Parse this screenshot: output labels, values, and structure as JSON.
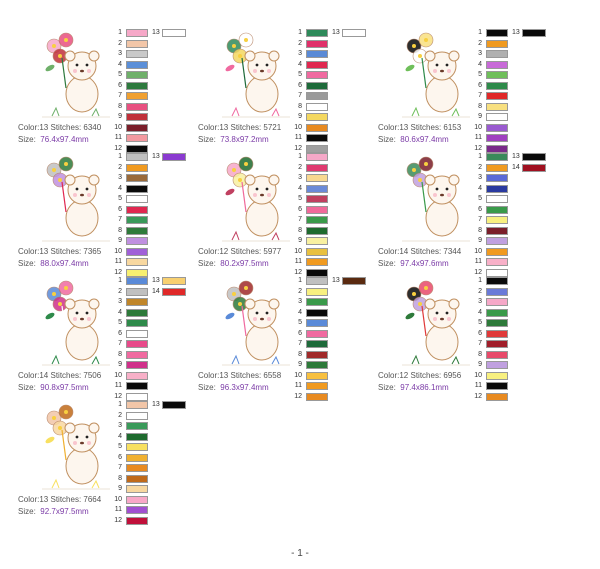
{
  "designs": [
    {
      "art": "monkey-with-flowers",
      "color_label": "Color:",
      "color_count": "13",
      "stitches_label": "Stitches:",
      "stitches": "6340",
      "size_label": "Size:",
      "size": "76.4x97.4mm",
      "swatches": [
        "#f6a8c8",
        "#f2c6a8",
        "#c9c9c9",
        "#5b8fd8",
        "#6fb06a",
        "#2e7a3e",
        "#f0a030",
        "#e85080",
        "#c0303a",
        "#7a1e2a",
        "#f39aa0",
        "#0a0a0a"
      ],
      "extra": [
        {
          "num": "13",
          "color": "#ffffff"
        }
      ]
    },
    {
      "art": "panda-with-tulips",
      "color_label": "Color:",
      "color_count": "13",
      "stitches_label": "Stitches:",
      "stitches": "5721",
      "size_label": "Size:",
      "size": "73.8x97.2mm",
      "swatches": [
        "#2e8a5a",
        "#e0306a",
        "#5a8ad6",
        "#e02850",
        "#f06aa0",
        "#1e6a3a",
        "#9a9a9a",
        "#ffffff",
        "#f4d860",
        "#e88a20",
        "#0a0a0a",
        "#a0a0a0"
      ],
      "extra": [
        {
          "num": "13",
          "color": "#ffffff"
        }
      ]
    },
    {
      "art": "bunny-with-iris",
      "color_label": "Color:",
      "color_count": "13",
      "stitches_label": "Stitches:",
      "stitches": "6153",
      "size_label": "Size:",
      "size": "80.6x97.4mm",
      "swatches": [
        "#0a0a0a",
        "#f09a20",
        "#b0b0b0",
        "#c86ad8",
        "#6fbf5a",
        "#2e8a4a",
        "#e02828",
        "#f8e080",
        "#ffffff",
        "#9a5ad0",
        "#a040c0",
        "#7a2a8a"
      ],
      "extra": [
        {
          "num": "13",
          "color": "#0a0a0a"
        }
      ]
    },
    {
      "art": "puppy-with-bellflower",
      "color_label": "Color:",
      "color_count": "13",
      "stitches_label": "Stitches:",
      "stitches": "7365",
      "size_label": "Size:",
      "size": "88.0x97.4mm",
      "swatches": [
        "#c0c0c0",
        "#f09a20",
        "#9a6a3a",
        "#0a0a0a",
        "#ffffff",
        "#e02850",
        "#3a9a5a",
        "#2e7a3a",
        "#c090e0",
        "#a060d8",
        "#f8d8a0",
        "#f8f070"
      ],
      "extra": [
        {
          "num": "13",
          "color": "#8a3ad0"
        }
      ]
    },
    {
      "art": "mouse-with-lilies",
      "color_label": "Color:",
      "color_count": "12",
      "stitches_label": "Stitches:",
      "stitches": "5977",
      "size_label": "Size:",
      "size": "80.2x97.5mm",
      "swatches": [
        "#f6a8c8",
        "#e03a70",
        "#f8d890",
        "#6a8ad8",
        "#c04060",
        "#f06a9a",
        "#3a9a4a",
        "#1e6a2e",
        "#f8f0a0",
        "#e8c040",
        "#f09a20",
        "#0a0a0a"
      ],
      "extra": []
    },
    {
      "art": "kitten-with-pansies",
      "color_label": "Color:",
      "color_count": "14",
      "stitches_label": "Stitches:",
      "stitches": "7344",
      "size_label": "Size:",
      "size": "97.4x97.6mm",
      "swatches": [
        "#3a8a5a",
        "#f09a20",
        "#5a6ad8",
        "#2a3aa0",
        "#ffffff",
        "#3a9a4a",
        "#f8f080",
        "#7a1e2a",
        "#c0a0e0",
        "#f09a20",
        "#f8b0c8",
        "#ffffff"
      ],
      "extra": [
        {
          "num": "13",
          "color": "#0a0a0a"
        },
        {
          "num": "14",
          "color": "#a01020"
        }
      ]
    },
    {
      "art": "bear-with-roses",
      "color_label": "Color:",
      "color_count": "14",
      "stitches_label": "Stitches:",
      "stitches": "7506",
      "size_label": "Size:",
      "size": "90.8x97.5mm",
      "swatches": [
        "#5a8ad8",
        "#c0c0c0",
        "#c0862a",
        "#2e7a3a",
        "#2e8a4a",
        "#ffffff",
        "#e84a8a",
        "#f06aa0",
        "#d0308a",
        "#f8b0c8",
        "#0a0a0a",
        "#ffffff"
      ],
      "extra": [
        {
          "num": "13",
          "color": "#f8d070"
        },
        {
          "num": "14",
          "color": "#e02828"
        }
      ]
    },
    {
      "art": "elephant-with-sunflowers",
      "color_label": "Color:",
      "color_count": "13",
      "stitches_label": "Stitches:",
      "stitches": "6558",
      "size_label": "Size:",
      "size": "96.3x97.4mm",
      "swatches": [
        "#c0c0c0",
        "#f8f080",
        "#3a9a4a",
        "#0a0a0a",
        "#5a8ad8",
        "#f06aa0",
        "#1e6a3a",
        "#a02a2a",
        "#2e7a3a",
        "#f8c040",
        "#f09a20",
        "#e88a20"
      ],
      "extra": [
        {
          "num": "13",
          "color": "#5a2a10"
        }
      ]
    },
    {
      "art": "chick-with-roses",
      "color_label": "Color:",
      "color_count": "12",
      "stitches_label": "Stitches:",
      "stitches": "6956",
      "size_label": "Size:",
      "size": "97.4x86.1mm",
      "swatches": [
        "#0a0a0a",
        "#6a7ad8",
        "#f6a8c8",
        "#3a9a4a",
        "#2e7a3a",
        "#e03a3a",
        "#a01e2a",
        "#e84a6a",
        "#c0a0e0",
        "#f8f080",
        "#0a0a0a",
        "#e88a20"
      ],
      "extra": []
    },
    {
      "art": "hedgehog-with-daffodils",
      "color_label": "Color:",
      "color_count": "13",
      "stitches_label": "Stitches:",
      "stitches": "7664",
      "size_label": "Size:",
      "size": "92.7x97.5mm",
      "swatches": [
        "#f2c6a8",
        "#ffffff",
        "#3a9a5a",
        "#1e6a2e",
        "#f8e060",
        "#f0b030",
        "#e88a20",
        "#c06a1a",
        "#f8d8a0",
        "#f8a8c8",
        "#a050d0",
        "#c0103a"
      ],
      "extra": [
        {
          "num": "13",
          "color": "#0a0a0a"
        }
      ]
    }
  ],
  "footer": {
    "page_number": "- 1 -"
  }
}
